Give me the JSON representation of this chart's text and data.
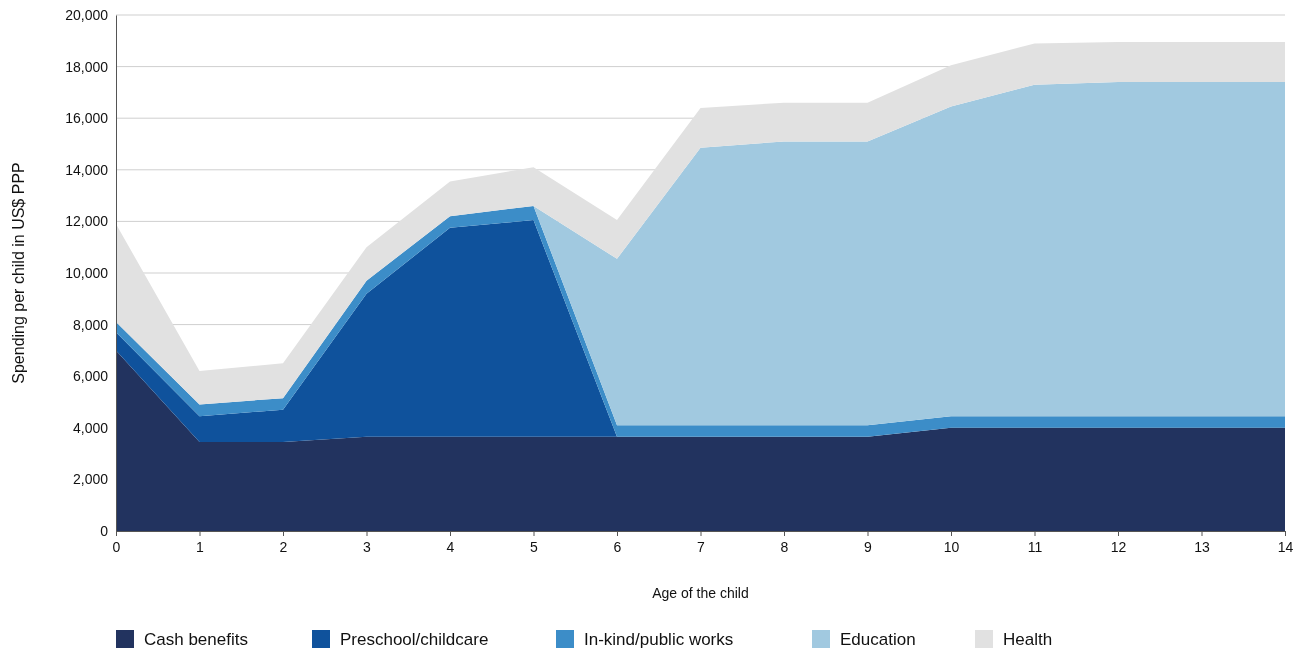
{
  "chart_data": {
    "type": "area",
    "stacked": true,
    "xlabel": "Age of the child",
    "ylabel": "Spending per child in US$ PPP",
    "x": [
      0,
      1,
      2,
      3,
      4,
      5,
      6,
      7,
      8,
      9,
      10,
      11,
      12,
      13,
      14
    ],
    "xlim": [
      0,
      14
    ],
    "xticks": [
      0,
      1,
      2,
      3,
      4,
      5,
      6,
      7,
      8,
      9,
      10,
      11,
      12,
      13,
      14
    ],
    "ylim": [
      0,
      20000
    ],
    "yticks": [
      {
        "value": 0,
        "label": "0"
      },
      {
        "value": 2000,
        "label": "2,000"
      },
      {
        "value": 4000,
        "label": "4,000"
      },
      {
        "value": 6000,
        "label": "6,000"
      },
      {
        "value": 8000,
        "label": "8,000"
      },
      {
        "value": 10000,
        "label": "10,000"
      },
      {
        "value": 12000,
        "label": "12,000"
      },
      {
        "value": 14000,
        "label": "14,000"
      },
      {
        "value": 16000,
        "label": "16,000"
      },
      {
        "value": 18000,
        "label": "18,000"
      },
      {
        "value": 20000,
        "label": "20,000"
      }
    ],
    "grid": "y",
    "legend": "bottom",
    "series": [
      {
        "name": "Cash benefits",
        "color": "#22335f",
        "values": [
          7000,
          3450,
          3450,
          3650,
          3650,
          3650,
          3650,
          3650,
          3650,
          3650,
          4000,
          4000,
          4000,
          4000,
          4000
        ]
      },
      {
        "name": "Preschool/childcare",
        "color": "#0f529c",
        "values": [
          700,
          1000,
          1250,
          5550,
          8100,
          8400,
          0,
          0,
          0,
          0,
          0,
          0,
          0,
          0,
          0
        ]
      },
      {
        "name": "In-kind/public works",
        "color": "#3c8dc8",
        "values": [
          400,
          450,
          450,
          500,
          450,
          550,
          450,
          450,
          450,
          450,
          450,
          450,
          450,
          450,
          450
        ]
      },
      {
        "name": "Education",
        "color": "#a1c9e0",
        "values": [
          0,
          0,
          0,
          0,
          0,
          0,
          6450,
          10750,
          11000,
          11000,
          12000,
          12850,
          12950,
          12950,
          12950
        ]
      },
      {
        "name": "Health",
        "color": "#e1e1e1",
        "values": [
          3800,
          1300,
          1350,
          1300,
          1350,
          1500,
          1500,
          1550,
          1500,
          1500,
          1600,
          1600,
          1550,
          1550,
          1550
        ]
      }
    ]
  }
}
